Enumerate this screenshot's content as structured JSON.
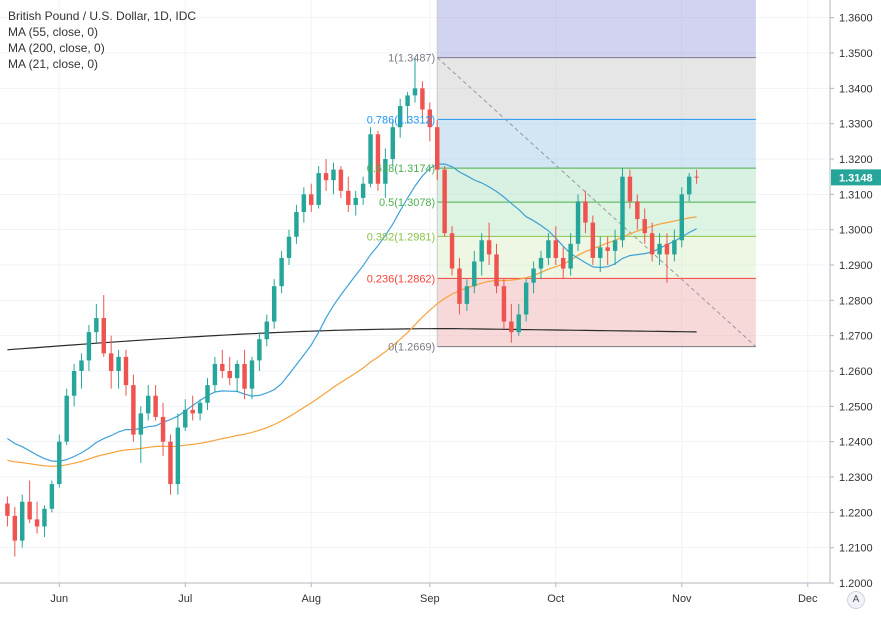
{
  "header": {
    "title": "British Pound / U.S. Dollar, 1D, IDC",
    "indicators": [
      "MA (55, close, 0)",
      "MA (200, close, 0)",
      "MA (21, close, 0)"
    ]
  },
  "auto_button_label": "A",
  "price_badge": "1.3148",
  "chart_data": {
    "type": "candlestick",
    "ylim": [
      1.2,
      1.365
    ],
    "y_ticks": [
      "1.2000",
      "1.2100",
      "1.2200",
      "1.2300",
      "1.2400",
      "1.2500",
      "1.2600",
      "1.2700",
      "1.2800",
      "1.2900",
      "1.3000",
      "1.3100",
      "1.3200",
      "1.3300",
      "1.3400",
      "1.3500",
      "1.3600"
    ],
    "x_ticks": [
      {
        "label": "Jun",
        "index": 7
      },
      {
        "label": "Jul",
        "index": 24
      },
      {
        "label": "Aug",
        "index": 41
      },
      {
        "label": "Sep",
        "index": 57
      },
      {
        "label": "Oct",
        "index": 74
      },
      {
        "label": "Nov",
        "index": 91
      },
      {
        "label": "Dec",
        "index": 108
      }
    ],
    "x_range": [
      -1,
      111
    ],
    "colors": {
      "up": "#26a69a",
      "down": "#ef5350",
      "ma55": "#f7a23b",
      "ma200": "#2b2b2b",
      "ma21": "#3fa1d8",
      "badge": "#26a69a"
    },
    "fibonacci": {
      "high": 1.3487,
      "low": 1.2669,
      "start_index": 58,
      "end_index": 101,
      "levels": [
        {
          "label": "1(1.3487)",
          "value": 1.3487,
          "color": "#787b86"
        },
        {
          "label": "0.786(1.3312)",
          "value": 1.3312,
          "color": "#2196f3"
        },
        {
          "label": "0.618(1.3174)",
          "value": 1.3174,
          "color": "#4caf50"
        },
        {
          "label": "0.5(1.3078)",
          "value": 1.3078,
          "color": "#4caf50"
        },
        {
          "label": "0.382(1.2981)",
          "value": 1.2981,
          "color": "#8bc34a"
        },
        {
          "label": "0.236(1.2862)",
          "value": 1.2862,
          "color": "#f44336"
        },
        {
          "label": "0(1.2669)",
          "value": 1.2669,
          "color": "#787b86"
        }
      ],
      "extension_level": 1.365
    },
    "candles": [
      {
        "o": 1.2225,
        "h": 1.2245,
        "l": 1.216,
        "c": 1.219
      },
      {
        "o": 1.219,
        "h": 1.2215,
        "l": 1.2075,
        "c": 1.212
      },
      {
        "o": 1.212,
        "h": 1.225,
        "l": 1.21,
        "c": 1.223
      },
      {
        "o": 1.223,
        "h": 1.229,
        "l": 1.217,
        "c": 1.218
      },
      {
        "o": 1.218,
        "h": 1.223,
        "l": 1.214,
        "c": 1.216
      },
      {
        "o": 1.216,
        "h": 1.222,
        "l": 1.213,
        "c": 1.221
      },
      {
        "o": 1.221,
        "h": 1.229,
        "l": 1.22,
        "c": 1.228
      },
      {
        "o": 1.228,
        "h": 1.242,
        "l": 1.227,
        "c": 1.24
      },
      {
        "o": 1.24,
        "h": 1.255,
        "l": 1.239,
        "c": 1.253
      },
      {
        "o": 1.253,
        "h": 1.262,
        "l": 1.25,
        "c": 1.26
      },
      {
        "o": 1.26,
        "h": 1.265,
        "l": 1.255,
        "c": 1.263
      },
      {
        "o": 1.263,
        "h": 1.273,
        "l": 1.26,
        "c": 1.271
      },
      {
        "o": 1.271,
        "h": 1.279,
        "l": 1.268,
        "c": 1.275
      },
      {
        "o": 1.275,
        "h": 1.2815,
        "l": 1.264,
        "c": 1.265
      },
      {
        "o": 1.265,
        "h": 1.27,
        "l": 1.255,
        "c": 1.26
      },
      {
        "o": 1.26,
        "h": 1.266,
        "l": 1.255,
        "c": 1.264
      },
      {
        "o": 1.264,
        "h": 1.266,
        "l": 1.253,
        "c": 1.256
      },
      {
        "o": 1.256,
        "h": 1.259,
        "l": 1.24,
        "c": 1.242
      },
      {
        "o": 1.242,
        "h": 1.25,
        "l": 1.234,
        "c": 1.248
      },
      {
        "o": 1.248,
        "h": 1.256,
        "l": 1.246,
        "c": 1.253
      },
      {
        "o": 1.253,
        "h": 1.256,
        "l": 1.246,
        "c": 1.247
      },
      {
        "o": 1.247,
        "h": 1.251,
        "l": 1.236,
        "c": 1.24
      },
      {
        "o": 1.24,
        "h": 1.242,
        "l": 1.225,
        "c": 1.228
      },
      {
        "o": 1.228,
        "h": 1.248,
        "l": 1.225,
        "c": 1.244
      },
      {
        "o": 1.244,
        "h": 1.252,
        "l": 1.243,
        "c": 1.249
      },
      {
        "o": 1.249,
        "h": 1.253,
        "l": 1.246,
        "c": 1.248
      },
      {
        "o": 1.248,
        "h": 1.252,
        "l": 1.246,
        "c": 1.251
      },
      {
        "o": 1.251,
        "h": 1.258,
        "l": 1.249,
        "c": 1.256
      },
      {
        "o": 1.256,
        "h": 1.264,
        "l": 1.254,
        "c": 1.262
      },
      {
        "o": 1.262,
        "h": 1.266,
        "l": 1.258,
        "c": 1.26
      },
      {
        "o": 1.26,
        "h": 1.264,
        "l": 1.256,
        "c": 1.258
      },
      {
        "o": 1.258,
        "h": 1.263,
        "l": 1.254,
        "c": 1.262
      },
      {
        "o": 1.262,
        "h": 1.266,
        "l": 1.252,
        "c": 1.255
      },
      {
        "o": 1.255,
        "h": 1.264,
        "l": 1.252,
        "c": 1.263
      },
      {
        "o": 1.263,
        "h": 1.271,
        "l": 1.26,
        "c": 1.269
      },
      {
        "o": 1.269,
        "h": 1.276,
        "l": 1.267,
        "c": 1.274
      },
      {
        "o": 1.274,
        "h": 1.286,
        "l": 1.272,
        "c": 1.284
      },
      {
        "o": 1.284,
        "h": 1.294,
        "l": 1.282,
        "c": 1.292
      },
      {
        "o": 1.292,
        "h": 1.3,
        "l": 1.29,
        "c": 1.298
      },
      {
        "o": 1.298,
        "h": 1.307,
        "l": 1.296,
        "c": 1.305
      },
      {
        "o": 1.305,
        "h": 1.312,
        "l": 1.302,
        "c": 1.31
      },
      {
        "o": 1.31,
        "h": 1.313,
        "l": 1.305,
        "c": 1.307
      },
      {
        "o": 1.307,
        "h": 1.318,
        "l": 1.306,
        "c": 1.316
      },
      {
        "o": 1.316,
        "h": 1.32,
        "l": 1.311,
        "c": 1.314
      },
      {
        "o": 1.314,
        "h": 1.319,
        "l": 1.31,
        "c": 1.317
      },
      {
        "o": 1.317,
        "h": 1.318,
        "l": 1.309,
        "c": 1.311
      },
      {
        "o": 1.311,
        "h": 1.315,
        "l": 1.305,
        "c": 1.307
      },
      {
        "o": 1.307,
        "h": 1.311,
        "l": 1.304,
        "c": 1.309
      },
      {
        "o": 1.309,
        "h": 1.315,
        "l": 1.307,
        "c": 1.313
      },
      {
        "o": 1.313,
        "h": 1.329,
        "l": 1.312,
        "c": 1.327
      },
      {
        "o": 1.327,
        "h": 1.328,
        "l": 1.311,
        "c": 1.313
      },
      {
        "o": 1.313,
        "h": 1.323,
        "l": 1.309,
        "c": 1.32
      },
      {
        "o": 1.32,
        "h": 1.331,
        "l": 1.318,
        "c": 1.329
      },
      {
        "o": 1.329,
        "h": 1.337,
        "l": 1.326,
        "c": 1.335
      },
      {
        "o": 1.335,
        "h": 1.339,
        "l": 1.33,
        "c": 1.338
      },
      {
        "o": 1.338,
        "h": 1.3487,
        "l": 1.336,
        "c": 1.34
      },
      {
        "o": 1.34,
        "h": 1.342,
        "l": 1.332,
        "c": 1.334
      },
      {
        "o": 1.334,
        "h": 1.336,
        "l": 1.325,
        "c": 1.329
      },
      {
        "o": 1.329,
        "h": 1.331,
        "l": 1.314,
        "c": 1.317
      },
      {
        "o": 1.317,
        "h": 1.318,
        "l": 1.298,
        "c": 1.299
      },
      {
        "o": 1.299,
        "h": 1.301,
        "l": 1.287,
        "c": 1.289
      },
      {
        "o": 1.289,
        "h": 1.292,
        "l": 1.276,
        "c": 1.279
      },
      {
        "o": 1.279,
        "h": 1.286,
        "l": 1.277,
        "c": 1.284
      },
      {
        "o": 1.284,
        "h": 1.294,
        "l": 1.282,
        "c": 1.291
      },
      {
        "o": 1.291,
        "h": 1.299,
        "l": 1.287,
        "c": 1.297
      },
      {
        "o": 1.297,
        "h": 1.302,
        "l": 1.29,
        "c": 1.293
      },
      {
        "o": 1.293,
        "h": 1.296,
        "l": 1.282,
        "c": 1.284
      },
      {
        "o": 1.284,
        "h": 1.286,
        "l": 1.272,
        "c": 1.274
      },
      {
        "o": 1.274,
        "h": 1.279,
        "l": 1.268,
        "c": 1.271
      },
      {
        "o": 1.271,
        "h": 1.279,
        "l": 1.27,
        "c": 1.276
      },
      {
        "o": 1.276,
        "h": 1.286,
        "l": 1.274,
        "c": 1.285
      },
      {
        "o": 1.285,
        "h": 1.291,
        "l": 1.282,
        "c": 1.289
      },
      {
        "o": 1.289,
        "h": 1.294,
        "l": 1.286,
        "c": 1.292
      },
      {
        "o": 1.292,
        "h": 1.299,
        "l": 1.29,
        "c": 1.297
      },
      {
        "o": 1.297,
        "h": 1.301,
        "l": 1.29,
        "c": 1.292
      },
      {
        "o": 1.292,
        "h": 1.295,
        "l": 1.286,
        "c": 1.289
      },
      {
        "o": 1.289,
        "h": 1.299,
        "l": 1.287,
        "c": 1.296
      },
      {
        "o": 1.296,
        "h": 1.31,
        "l": 1.294,
        "c": 1.308
      },
      {
        "o": 1.308,
        "h": 1.311,
        "l": 1.299,
        "c": 1.302
      },
      {
        "o": 1.302,
        "h": 1.304,
        "l": 1.29,
        "c": 1.292
      },
      {
        "o": 1.292,
        "h": 1.298,
        "l": 1.288,
        "c": 1.295
      },
      {
        "o": 1.295,
        "h": 1.298,
        "l": 1.29,
        "c": 1.294
      },
      {
        "o": 1.294,
        "h": 1.3,
        "l": 1.29,
        "c": 1.297
      },
      {
        "o": 1.297,
        "h": 1.3174,
        "l": 1.295,
        "c": 1.315
      },
      {
        "o": 1.315,
        "h": 1.317,
        "l": 1.306,
        "c": 1.308
      },
      {
        "o": 1.308,
        "h": 1.31,
        "l": 1.3,
        "c": 1.303
      },
      {
        "o": 1.303,
        "h": 1.306,
        "l": 1.296,
        "c": 1.299
      },
      {
        "o": 1.299,
        "h": 1.302,
        "l": 1.291,
        "c": 1.293
      },
      {
        "o": 1.293,
        "h": 1.299,
        "l": 1.29,
        "c": 1.296
      },
      {
        "o": 1.296,
        "h": 1.299,
        "l": 1.285,
        "c": 1.293
      },
      {
        "o": 1.293,
        "h": 1.3,
        "l": 1.291,
        "c": 1.297
      },
      {
        "o": 1.297,
        "h": 1.312,
        "l": 1.295,
        "c": 1.31
      },
      {
        "o": 1.31,
        "h": 1.316,
        "l": 1.308,
        "c": 1.315
      },
      {
        "o": 1.315,
        "h": 1.317,
        "l": 1.313,
        "c": 1.3148
      }
    ]
  }
}
